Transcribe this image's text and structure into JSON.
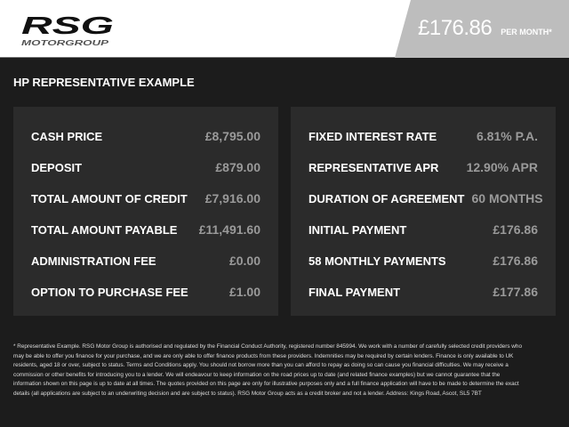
{
  "header": {
    "logo_text": "RSG",
    "logo_sub": "MOTORGROUP",
    "price": "£176.86",
    "per_month": "PER MONTH*",
    "colors": {
      "header_bg": "#ffffff",
      "price_bg": "#bdbdbd",
      "page_bg": "#1c1c1c",
      "panel_bg": "#2b2b2b"
    }
  },
  "title": "HP REPRESENTATIVE EXAMPLE",
  "left": [
    {
      "label": "CASH PRICE",
      "value": "£8,795.00"
    },
    {
      "label": "DEPOSIT",
      "value": "£879.00"
    },
    {
      "label": "TOTAL AMOUNT OF CREDIT",
      "value": "£7,916.00"
    },
    {
      "label": "TOTAL AMOUNT PAYABLE",
      "value": "£11,491.60"
    },
    {
      "label": "ADMINISTRATION FEE",
      "value": "£0.00"
    },
    {
      "label": "OPTION TO PURCHASE FEE",
      "value": "£1.00"
    }
  ],
  "right": [
    {
      "label": "FIXED INTEREST RATE",
      "value": "6.81% P.A."
    },
    {
      "label": "REPRESENTATIVE APR",
      "value": "12.90% APR"
    },
    {
      "label": "DURATION OF AGREEMENT",
      "value": "60 MONTHS"
    },
    {
      "label": "INITIAL PAYMENT",
      "value": "£176.86"
    },
    {
      "label": "58 MONTHLY PAYMENTS",
      "value": "£176.86"
    },
    {
      "label": "FINAL PAYMENT",
      "value": "£177.86"
    }
  ],
  "footer": "* Representative Example. RSG Motor Group is authorised and regulated by the Financial Conduct Authority, registered number 845994. We work with a number of carefully selected credit providers who may be able to offer you finance for your purchase, and we are only able to offer finance products from these providers. Indemnities may be required by certain lenders. Finance is only available to UK residents, aged 18 or over, subject to status. Terms and Conditions apply. You should not borrow more than you can afford to repay as doing so can cause you financial difficulties. We may receive a commission or other benefits for introducing you to a lender. We will endeavour to keep information on the road prices up to date (and related finance examples) but we cannot guarantee that the information shown on this page is up to date at all times. The quotes provided on this page are only for illustrative purposes only and a full finance application will have to be made to determine the exact details (all applications are subject to an underwriting decision and are subject to status). RSG Motor Group acts as a credit broker and not a lender. Address: Kings Road, Ascot, SL5 7BT"
}
